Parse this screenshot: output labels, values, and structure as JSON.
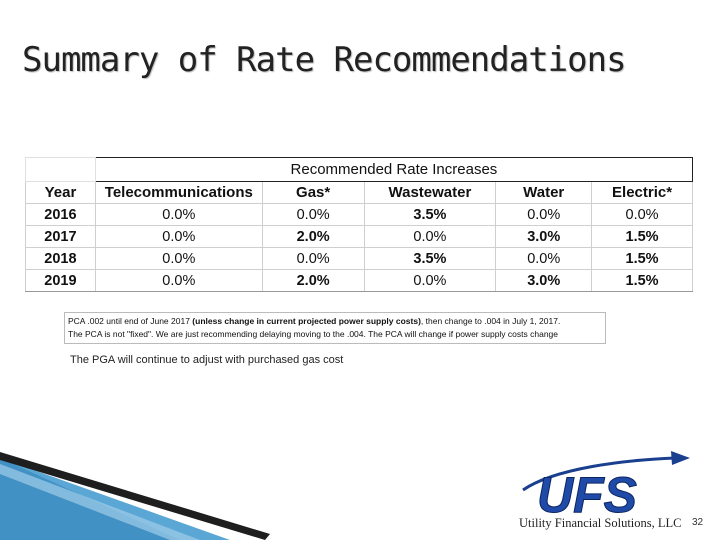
{
  "title": "Summary of Rate Recommendations",
  "table": {
    "group_header": "Recommended Rate Increases",
    "columns": [
      "Year",
      "Telecommunications",
      "Gas*",
      "Wastewater",
      "Water",
      "Electric*"
    ],
    "rows": [
      {
        "year": "2016",
        "values": [
          "0.0%",
          "0.0%",
          "3.5%",
          "0.0%",
          "0.0%"
        ]
      },
      {
        "year": "2017",
        "values": [
          "0.0%",
          "2.0%",
          "0.0%",
          "3.0%",
          "1.5%"
        ]
      },
      {
        "year": "2018",
        "values": [
          "0.0%",
          "0.0%",
          "3.5%",
          "0.0%",
          "1.5%"
        ]
      },
      {
        "year": "2019",
        "values": [
          "0.0%",
          "2.0%",
          "0.0%",
          "3.0%",
          "1.5%"
        ]
      }
    ]
  },
  "note": {
    "line1_start": "PCA .002 until end of June 2017 ",
    "line1_bold": "(unless change in current projected power supply costs)",
    "line1_end": ", then change to .004 in July 1, 2017.",
    "line2": "The PCA is not \"fixed\".  We are just recommending delaying moving to the .004.  The PCA will change if power supply costs change"
  },
  "pga_note": "The PGA will continue to adjust with purchased gas cost",
  "logo": {
    "text": "UFS",
    "company": "Utility Financial Solutions, LLC"
  },
  "page_number": "32"
}
